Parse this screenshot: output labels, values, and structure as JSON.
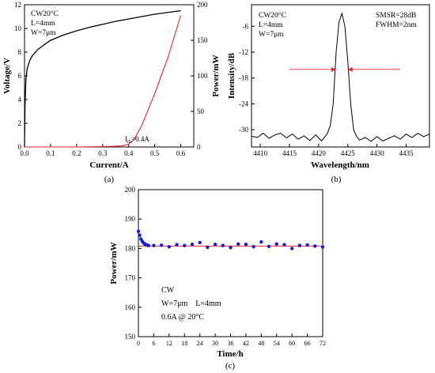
{
  "colors": {
    "axis": "#000000",
    "voltage": "#000000",
    "power": "#e0262b",
    "marker": "#1a1adb",
    "fit": "#e0262b",
    "arrow": "#e0262b"
  },
  "chart_data": [
    {
      "panel": "(a)",
      "type": "line",
      "title": "",
      "annotations": [
        "CW20°C",
        "L=4mm",
        "W=7μm"
      ],
      "threshold": {
        "prefix": "I",
        "sub": "th",
        "suffix": "=0.4A"
      },
      "xlabel": "Current/A",
      "ylabel_left": "Voltage/V",
      "ylabel_right": "Power/mW",
      "xlim": [
        0,
        0.65
      ],
      "ylim_left": [
        0,
        12
      ],
      "ylim_right": [
        0,
        200
      ],
      "x_ticks": [
        "0.0",
        "0.1",
        "0.2",
        "0.3",
        "0.4",
        "0.5",
        "0.6"
      ],
      "y_ticks_left": [
        "0",
        "2",
        "4",
        "6",
        "8",
        "10",
        "12"
      ],
      "y_ticks_right": [
        "0",
        "50",
        "100",
        "150",
        "200"
      ],
      "series": [
        {
          "axis": "left",
          "x": [
            0,
            0.002,
            0.005,
            0.01,
            0.02,
            0.03,
            0.05,
            0.08,
            0.1,
            0.15,
            0.2,
            0.25,
            0.3,
            0.35,
            0.4,
            0.45,
            0.5,
            0.55,
            0.6
          ],
          "y": [
            0,
            3.5,
            5.6,
            6.6,
            7.3,
            7.7,
            8.2,
            8.7,
            9.0,
            9.45,
            9.8,
            10.1,
            10.35,
            10.6,
            10.8,
            11.0,
            11.2,
            11.35,
            11.5
          ]
        },
        {
          "axis": "right",
          "x": [
            0,
            0.1,
            0.2,
            0.3,
            0.35,
            0.38,
            0.4,
            0.42,
            0.45,
            0.5,
            0.55,
            0.6
          ],
          "y": [
            0,
            0,
            0,
            0.5,
            1,
            2,
            4,
            10,
            30,
            75,
            125,
            185
          ]
        }
      ]
    },
    {
      "panel": "(b)",
      "type": "line",
      "title": "",
      "annotations": [
        "CW20°C",
        "L=4mm",
        "W=7μm",
        "SMSR=28dB",
        "FWHM=2nm"
      ],
      "xlabel": "Wavelength/nm",
      "ylabel": "Intensity/dB",
      "xlim": [
        4408.5,
        4439
      ],
      "ylim": [
        -34,
        -1
      ],
      "x_ticks": [
        "4410",
        "4415",
        "4420",
        "4425",
        "4430",
        "4435"
      ],
      "y_ticks": [
        "-6",
        "-12",
        "-18",
        "-24",
        "-30"
      ],
      "fwhm_marker": {
        "level": -16,
        "left": 4423,
        "right": 4425,
        "arrow_from_left": 4415,
        "arrow_from_right": 4434
      },
      "series": [
        {
          "x": [
            4408.5,
            4409.5,
            4410.5,
            4411.5,
            4412.5,
            4413.5,
            4414.5,
            4415.5,
            4416.5,
            4417.5,
            4418.5,
            4419.5,
            4420.5,
            4421.5,
            4422,
            4422.5,
            4423,
            4423.5,
            4424,
            4424.5,
            4425,
            4425.5,
            4426,
            4426.5,
            4427,
            4428,
            4429,
            4430,
            4431,
            4432,
            4433,
            4434,
            4435,
            4436,
            4437,
            4438,
            4439
          ],
          "y": [
            -31.5,
            -31.8,
            -30.8,
            -32.0,
            -31.2,
            -30.8,
            -31.9,
            -31.0,
            -32.2,
            -31.4,
            -32.5,
            -31.2,
            -32.6,
            -30.9,
            -29,
            -24,
            -12,
            -5,
            -3,
            -6,
            -14,
            -24,
            -30,
            -31.5,
            -32.4,
            -31.8,
            -32.7,
            -31.6,
            -32.6,
            -32.0,
            -31.4,
            -32.2,
            -31.0,
            -31.8,
            -30.8,
            -31.6,
            -31.0
          ]
        }
      ]
    },
    {
      "panel": "(c)",
      "type": "scatter",
      "title": "",
      "annotations": [
        "CW",
        "W=7μm    L=4mm",
        "0.6A @ 20°C"
      ],
      "xlabel": "Time/h",
      "ylabel": "Power/mW",
      "xlim": [
        0,
        72
      ],
      "ylim": [
        150,
        200
      ],
      "x_ticks": [
        "0",
        "6",
        "12",
        "18",
        "24",
        "30",
        "36",
        "42",
        "48",
        "54",
        "60",
        "66",
        "72"
      ],
      "y_ticks": [
        "150",
        "160",
        "170",
        "180",
        "190",
        "200"
      ],
      "fit_line": 180.8,
      "series": [
        {
          "x": [
            0,
            0.5,
            1,
            1.5,
            2,
            2.5,
            3,
            3.5,
            4,
            6,
            9,
            12,
            15,
            18,
            21,
            24,
            27,
            30,
            33,
            36,
            39,
            42,
            45,
            48,
            51,
            54,
            57,
            60,
            63,
            66,
            69,
            72
          ],
          "y": [
            185.8,
            184.5,
            183.2,
            182.4,
            181.9,
            181.5,
            181.3,
            181.1,
            181.0,
            181.0,
            181.1,
            180.6,
            181.3,
            181.0,
            181.4,
            182.0,
            180.4,
            181.4,
            181.0,
            180.3,
            181.5,
            181.4,
            180.6,
            182.2,
            180.7,
            181.5,
            181.3,
            180.0,
            181.0,
            181.2,
            180.8,
            180.5
          ]
        }
      ]
    }
  ]
}
